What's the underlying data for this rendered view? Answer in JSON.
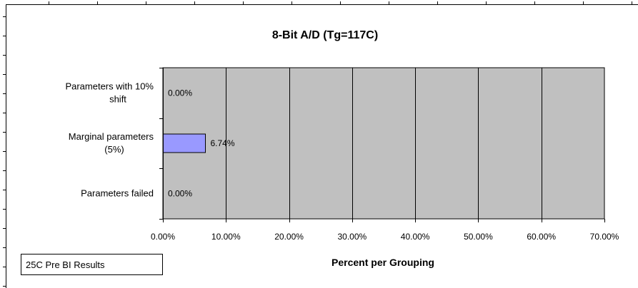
{
  "chart_data": {
    "type": "bar",
    "orientation": "horizontal",
    "title": "8-Bit A/D (Tg=117C)",
    "xlabel": "Percent per Grouping",
    "ylabel": "",
    "categories": [
      "Parameters with 10% shift",
      "Marginal parameters (5%)",
      "Parameters failed"
    ],
    "category_lines": [
      [
        "Parameters with 10%",
        "shift"
      ],
      [
        "Marginal parameters",
        "(5%)"
      ],
      [
        "Parameters failed"
      ]
    ],
    "values": [
      0.0,
      6.74,
      0.0
    ],
    "data_labels": [
      "0.00%",
      "6.74%",
      "0.00%"
    ],
    "xlim": [
      0,
      70
    ],
    "xticks": [
      0,
      10,
      20,
      30,
      40,
      50,
      60,
      70
    ],
    "xtick_labels": [
      "0.00%",
      "10.00%",
      "20.00%",
      "30.00%",
      "40.00%",
      "50.00%",
      "60.00%",
      "70.00%"
    ],
    "grid": "vertical",
    "legend": "none",
    "colors": {
      "plot_bg": "#c0c0c0",
      "bar": "#9999ff",
      "grid": "#000000"
    }
  },
  "note": "25C Pre BI Results"
}
